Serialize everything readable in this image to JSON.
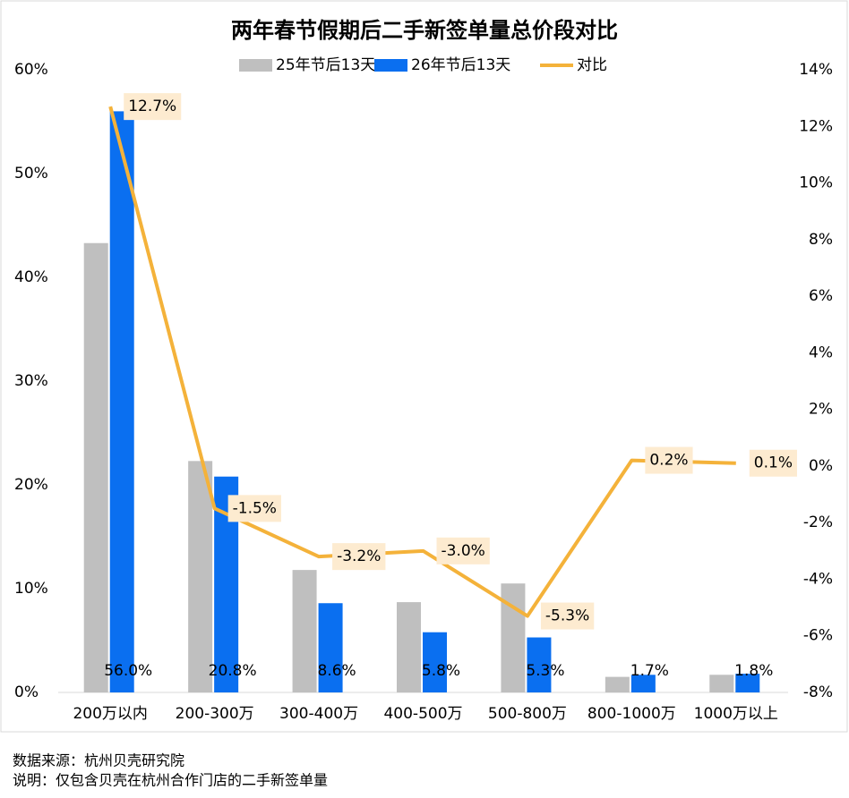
{
  "chart_data": {
    "type": "bar-line",
    "title": "两年春节假期后二手新签单量总价段对比",
    "categories": [
      "200万以内",
      "200-300万",
      "300-400万",
      "400-500万",
      "500-800万",
      "800-1000万",
      "1000万以上"
    ],
    "series": [
      {
        "name": "25年节后13天",
        "type": "bar",
        "color": "#bfbfbf",
        "values": [
          43.3,
          22.3,
          11.8,
          8.7,
          10.5,
          1.5,
          1.7
        ]
      },
      {
        "name": "26年节后13天",
        "type": "bar",
        "color": "#0a6ff0",
        "values": [
          56.0,
          20.8,
          8.6,
          5.8,
          5.3,
          1.7,
          1.8
        ],
        "value_labels": [
          "56.0%",
          "20.8%",
          "8.6%",
          "5.8%",
          "5.3%",
          "1.7%",
          "1.8%"
        ]
      },
      {
        "name": "对比",
        "type": "line",
        "axis": "y2",
        "color": "#f4b23a",
        "values": [
          12.7,
          -1.5,
          -3.2,
          -3.0,
          -5.3,
          0.2,
          0.1
        ],
        "value_labels": [
          "12.7%",
          "-1.5%",
          "-3.2%",
          "-3.0%",
          "-5.3%",
          "0.2%",
          "0.1%"
        ]
      }
    ],
    "ylim": [
      0,
      60
    ],
    "yticks": [
      {
        "value": 0,
        "label": "0%"
      },
      {
        "value": 10,
        "label": "10%"
      },
      {
        "value": 20,
        "label": "20%"
      },
      {
        "value": 30,
        "label": "30%"
      },
      {
        "value": 40,
        "label": "40%"
      },
      {
        "value": 50,
        "label": "50%"
      },
      {
        "value": 60,
        "label": "60%"
      }
    ],
    "y2lim": [
      -8,
      14
    ],
    "y2ticks": [
      {
        "value": -8,
        "label": "-8%"
      },
      {
        "value": -6,
        "label": "-6%"
      },
      {
        "value": -4,
        "label": "-4%"
      },
      {
        "value": -2,
        "label": "-2%"
      },
      {
        "value": 0,
        "label": "0%"
      },
      {
        "value": 2,
        "label": "2%"
      },
      {
        "value": 4,
        "label": "4%"
      },
      {
        "value": 6,
        "label": "6%"
      },
      {
        "value": 8,
        "label": "8%"
      },
      {
        "value": 10,
        "label": "10%"
      },
      {
        "value": 12,
        "label": "12%"
      },
      {
        "value": 14,
        "label": "14%"
      }
    ],
    "grid": false,
    "legend": "top"
  },
  "footer": [
    "数据来源：杭州贝壳研究院",
    "说明：仅包含贝壳在杭州合作门店的二手新签单量"
  ]
}
